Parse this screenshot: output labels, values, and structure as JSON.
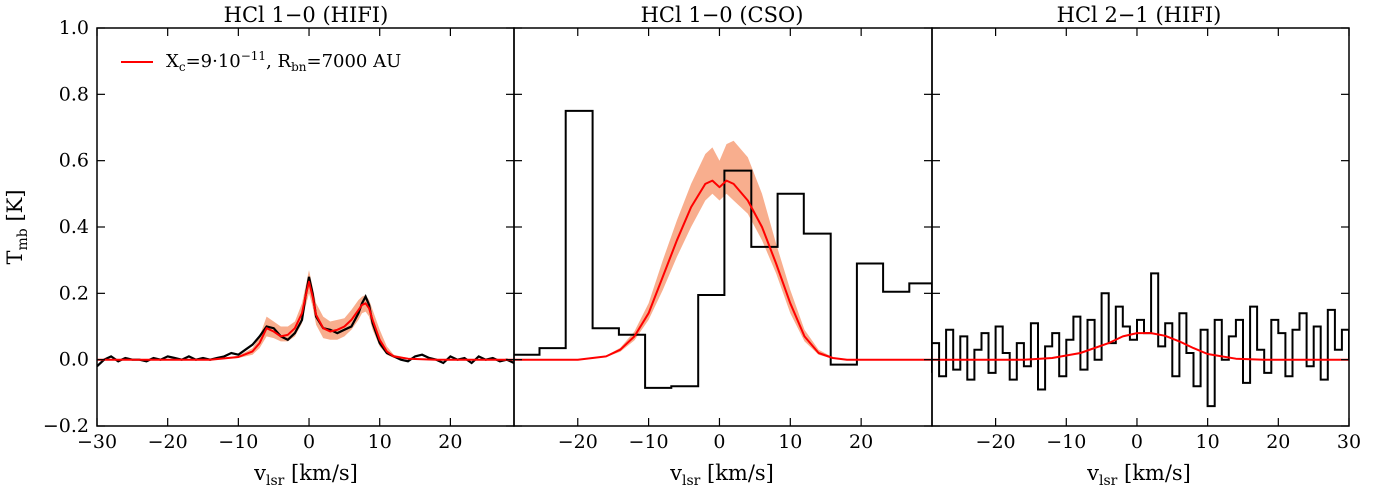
{
  "figure": {
    "ylabel": "T",
    "ylabel_sub": "mb",
    "ylabel_unit": " [K]",
    "xlabel": "v",
    "xlabel_sub": "lsr",
    "xlabel_unit": " [km/s]",
    "legend": {
      "label_x": "X",
      "label_x_sub": "c",
      "label_eq1": "=9·10",
      "label_exp": "−11",
      "label_mid": ", R",
      "label_r_sub": "bn",
      "label_eq2": "=7000 AU"
    },
    "colors": {
      "model": "#ff0000",
      "band": "#f7a582",
      "observed": "#000000"
    }
  },
  "chart_data": [
    {
      "type": "line",
      "title": "HCl 1−0 (HIFI)",
      "xlim": [
        -30,
        29
      ],
      "ylim": [
        -0.2,
        1.0
      ],
      "xticks": [
        -30,
        -20,
        -10,
        0,
        10,
        20
      ],
      "xtick_labels": [
        "−30",
        "−20",
        "−10",
        "0",
        "10",
        "20"
      ],
      "yticks": [
        -0.2,
        0.0,
        0.2,
        0.4,
        0.6,
        0.8,
        1.0
      ],
      "ytick_labels": [
        "−0.2",
        "0.0",
        "0.2",
        "0.4",
        "0.6",
        "0.8",
        "1.0"
      ],
      "series": [
        {
          "name": "X_c=9·10^-11, R_bn=7000 AU",
          "style": "model",
          "x": [
            -30,
            -14,
            -10,
            -8,
            -7,
            -6,
            -5,
            -4,
            -3,
            -2,
            -1,
            -0.5,
            0,
            0.5,
            1,
            2,
            3,
            4,
            5,
            6,
            7,
            7.5,
            8,
            8.5,
            9,
            10,
            11,
            12,
            14,
            18,
            29
          ],
          "y": [
            0.0,
            0.0,
            0.008,
            0.025,
            0.05,
            0.095,
            0.085,
            0.07,
            0.075,
            0.095,
            0.14,
            0.19,
            0.235,
            0.19,
            0.135,
            0.095,
            0.085,
            0.09,
            0.1,
            0.12,
            0.15,
            0.165,
            0.17,
            0.155,
            0.12,
            0.06,
            0.025,
            0.01,
            0.003,
            0.0,
            0.0
          ]
        },
        {
          "name": "uncertainty band",
          "style": "band",
          "x": [
            -30,
            -14,
            -10,
            -8,
            -7,
            -6,
            -5,
            -4,
            -3,
            -2,
            -1,
            -0.5,
            0,
            0.5,
            1,
            2,
            3,
            4,
            5,
            6,
            7,
            7.5,
            8,
            8.5,
            9,
            10,
            11,
            12,
            14,
            18,
            29
          ],
          "low": [
            0.0,
            0.0,
            0.005,
            0.015,
            0.035,
            0.07,
            0.065,
            0.055,
            0.055,
            0.07,
            0.11,
            0.16,
            0.2,
            0.16,
            0.105,
            0.065,
            0.06,
            0.06,
            0.07,
            0.09,
            0.12,
            0.14,
            0.145,
            0.13,
            0.09,
            0.04,
            0.015,
            0.005,
            0.001,
            0.0,
            0.0
          ],
          "high": [
            0.0,
            0.0,
            0.012,
            0.035,
            0.07,
            0.13,
            0.115,
            0.1,
            0.1,
            0.115,
            0.17,
            0.22,
            0.27,
            0.22,
            0.17,
            0.13,
            0.115,
            0.12,
            0.125,
            0.15,
            0.18,
            0.19,
            0.195,
            0.18,
            0.15,
            0.09,
            0.04,
            0.015,
            0.005,
            0.0,
            0.0
          ]
        },
        {
          "name": "observed",
          "style": "observed",
          "x": [
            -30,
            -29,
            -28,
            -27,
            -26,
            -25,
            -24,
            -23,
            -22,
            -21,
            -20,
            -19,
            -18,
            -17,
            -16,
            -15,
            -14,
            -13,
            -12,
            -11,
            -10,
            -9,
            -8,
            -7,
            -6,
            -5,
            -4,
            -3,
            -2,
            -1,
            -0.5,
            0,
            0.5,
            1,
            2,
            3,
            4,
            5,
            6,
            7,
            7.5,
            8,
            8.5,
            9,
            10,
            11,
            12,
            13,
            14,
            15,
            16,
            17,
            18,
            19,
            20,
            21,
            22,
            23,
            24,
            25,
            26,
            27,
            28,
            29
          ],
          "y": [
            -0.02,
            0.0,
            0.01,
            -0.005,
            0.005,
            0.0,
            0.0,
            -0.005,
            0.005,
            0.0,
            0.01,
            0.005,
            0.0,
            0.01,
            0.0,
            0.005,
            0.0,
            0.005,
            0.01,
            0.02,
            0.015,
            0.03,
            0.045,
            0.07,
            0.1,
            0.095,
            0.07,
            0.06,
            0.08,
            0.12,
            0.19,
            0.25,
            0.2,
            0.13,
            0.095,
            0.09,
            0.08,
            0.09,
            0.1,
            0.14,
            0.17,
            0.19,
            0.165,
            0.11,
            0.05,
            0.02,
            0.01,
            0.0,
            -0.005,
            0.01,
            0.015,
            0.005,
            0.0,
            -0.01,
            0.01,
            0.0,
            0.005,
            -0.01,
            0.01,
            0.0,
            0.005,
            -0.005,
            0.0,
            -0.01
          ]
        }
      ]
    },
    {
      "type": "line",
      "title": "HCl 1−0 (CSO)",
      "xlim": [
        -29,
        30
      ],
      "ylim": [
        -0.2,
        1.0
      ],
      "xticks": [
        -20,
        -10,
        0,
        10,
        20
      ],
      "xtick_labels": [
        "−20",
        "−10",
        "0",
        "10",
        "20"
      ],
      "yticks": [
        -0.2,
        0.0,
        0.2,
        0.4,
        0.6,
        0.8,
        1.0
      ],
      "series": [
        {
          "name": "X_c=9·10^-11, R_bn=7000 AU",
          "style": "model",
          "x": [
            -29,
            -20,
            -16,
            -14,
            -12,
            -10,
            -8,
            -6,
            -4,
            -2,
            -1,
            0,
            1,
            2,
            4,
            6,
            8,
            10,
            12,
            14,
            16,
            18,
            30
          ],
          "y": [
            0.0,
            0.0,
            0.01,
            0.03,
            0.07,
            0.14,
            0.25,
            0.36,
            0.46,
            0.53,
            0.54,
            0.52,
            0.54,
            0.53,
            0.48,
            0.4,
            0.29,
            0.17,
            0.07,
            0.02,
            0.005,
            0.0,
            0.0
          ]
        },
        {
          "name": "uncertainty band",
          "style": "band",
          "x": [
            -29,
            -20,
            -16,
            -14,
            -12,
            -10,
            -8,
            -6,
            -4,
            -2,
            -1,
            0,
            1,
            2,
            4,
            6,
            8,
            10,
            12,
            14,
            16,
            18,
            30
          ],
          "low": [
            0.0,
            0.0,
            0.008,
            0.024,
            0.058,
            0.12,
            0.21,
            0.31,
            0.4,
            0.48,
            0.5,
            0.48,
            0.5,
            0.48,
            0.44,
            0.36,
            0.26,
            0.14,
            0.055,
            0.015,
            0.003,
            0.0,
            0.0
          ],
          "high": [
            0.0,
            0.0,
            0.012,
            0.036,
            0.085,
            0.17,
            0.3,
            0.42,
            0.53,
            0.62,
            0.64,
            0.6,
            0.65,
            0.66,
            0.61,
            0.5,
            0.35,
            0.21,
            0.09,
            0.03,
            0.007,
            0.0,
            0.0
          ]
        },
        {
          "name": "observed",
          "style": "observed-step",
          "x": [
            -29,
            -25.4,
            -21.7,
            -17.9,
            -14.2,
            -10.5,
            -6.8,
            -3.0,
            0.7,
            4.5,
            8.2,
            11.9,
            15.7,
            19.4,
            23.1,
            26.8,
            30
          ],
          "y": [
            0.015,
            0.035,
            0.75,
            0.095,
            0.075,
            -0.085,
            -0.08,
            0.195,
            0.57,
            0.34,
            0.5,
            0.38,
            -0.015,
            0.29,
            0.205,
            0.23,
            -0.04
          ]
        }
      ]
    },
    {
      "type": "line",
      "title": "HCl 2−1 (HIFI)",
      "xlim": [
        -29,
        30
      ],
      "ylim": [
        -0.2,
        1.0
      ],
      "xticks": [
        -20,
        -10,
        0,
        10,
        20,
        30
      ],
      "xtick_labels": [
        "−20",
        "−10",
        "0",
        "10",
        "20",
        "30"
      ],
      "yticks": [
        -0.2,
        0.0,
        0.2,
        0.4,
        0.6,
        0.8,
        1.0
      ],
      "series": [
        {
          "name": "X_c=9·10^-11, R_bn=7000 AU",
          "style": "model",
          "x": [
            -29,
            -16,
            -12,
            -8,
            -4,
            -2,
            0,
            2,
            4,
            6,
            8,
            10,
            14,
            18,
            30
          ],
          "y": [
            0.0,
            0.0,
            0.005,
            0.02,
            0.05,
            0.07,
            0.08,
            0.08,
            0.072,
            0.055,
            0.035,
            0.017,
            0.003,
            0.0,
            0.0
          ]
        },
        {
          "name": "observed",
          "style": "observed-step",
          "x": [
            -29,
            -28,
            -27,
            -26,
            -25,
            -24,
            -23,
            -22,
            -21,
            -20,
            -19,
            -18,
            -17,
            -16,
            -15,
            -14,
            -13,
            -12,
            -11,
            -10,
            -9,
            -8,
            -7,
            -6,
            -5,
            -4,
            -3,
            -2,
            -1,
            0,
            1,
            2,
            3,
            4,
            5,
            6,
            7,
            8,
            9,
            10,
            11,
            12,
            13,
            14,
            15,
            16,
            17,
            18,
            19,
            20,
            21,
            22,
            23,
            24,
            25,
            26,
            27,
            28,
            29,
            30
          ],
          "y": [
            0.05,
            -0.05,
            0.09,
            -0.03,
            0.07,
            -0.06,
            0.03,
            0.08,
            -0.04,
            0.1,
            0.02,
            -0.06,
            0.05,
            -0.02,
            0.11,
            -0.09,
            0.04,
            0.08,
            -0.05,
            0.06,
            0.13,
            -0.03,
            0.12,
            0.0,
            0.2,
            0.05,
            0.16,
            0.1,
            0.06,
            0.12,
            0.08,
            0.26,
            0.04,
            0.11,
            -0.05,
            0.14,
            0.02,
            -0.08,
            0.09,
            -0.14,
            0.12,
            0.0,
            0.07,
            0.12,
            -0.07,
            0.16,
            0.03,
            -0.04,
            0.12,
            0.08,
            -0.05,
            0.09,
            0.14,
            -0.02,
            0.1,
            -0.06,
            0.15,
            0.03,
            0.09,
            0.0
          ]
        }
      ]
    }
  ]
}
